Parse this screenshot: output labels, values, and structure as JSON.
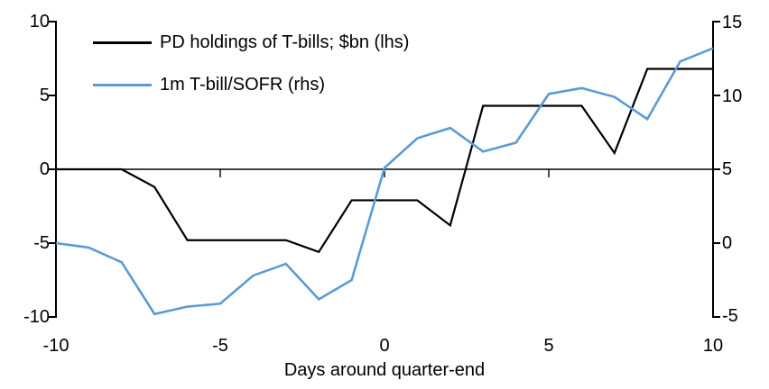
{
  "chart_data": {
    "type": "line",
    "title": "",
    "xlabel": "Days around quarter-end",
    "x": [
      -10,
      -9,
      -8,
      -7,
      -6,
      -5,
      -4,
      -3,
      -2,
      -1,
      0,
      1,
      2,
      3,
      4,
      5,
      6,
      7,
      8,
      9,
      10
    ],
    "series": [
      {
        "name": "PD holdings of T-bills; $bn (lhs)",
        "axis": "left",
        "color": "#000000",
        "values": [
          0,
          0,
          0,
          -1.2,
          -4.8,
          -4.8,
          -4.8,
          -4.8,
          -5.6,
          -2.1,
          -2.1,
          -2.1,
          -3.8,
          4.3,
          4.3,
          4.3,
          4.3,
          1.1,
          6.8,
          6.8,
          6.8
        ]
      },
      {
        "name": "1m T-bill/SOFR (rhs)",
        "axis": "right",
        "color": "#5B9BD5",
        "values": [
          0,
          -0.3,
          -1.3,
          -4.8,
          -4.3,
          -4.1,
          -2.2,
          -1.4,
          -3.8,
          -2.5,
          5.1,
          7.1,
          7.8,
          6.2,
          6.8,
          10.1,
          10.5,
          9.9,
          8.4,
          12.3,
          13.2
        ]
      }
    ],
    "left_axis": {
      "range": [
        -10,
        10
      ],
      "ticks": [
        10,
        5,
        0,
        -5,
        -10
      ]
    },
    "right_axis": {
      "range": [
        -5,
        15
      ],
      "ticks": [
        15,
        10,
        5,
        0,
        -5
      ]
    },
    "x_axis": {
      "range": [
        -10,
        10
      ],
      "ticks": [
        -10,
        -5,
        0,
        5,
        10
      ]
    },
    "zero_line": true,
    "grid": false,
    "legend_position": "top-left",
    "background": "#FFFFFF"
  }
}
